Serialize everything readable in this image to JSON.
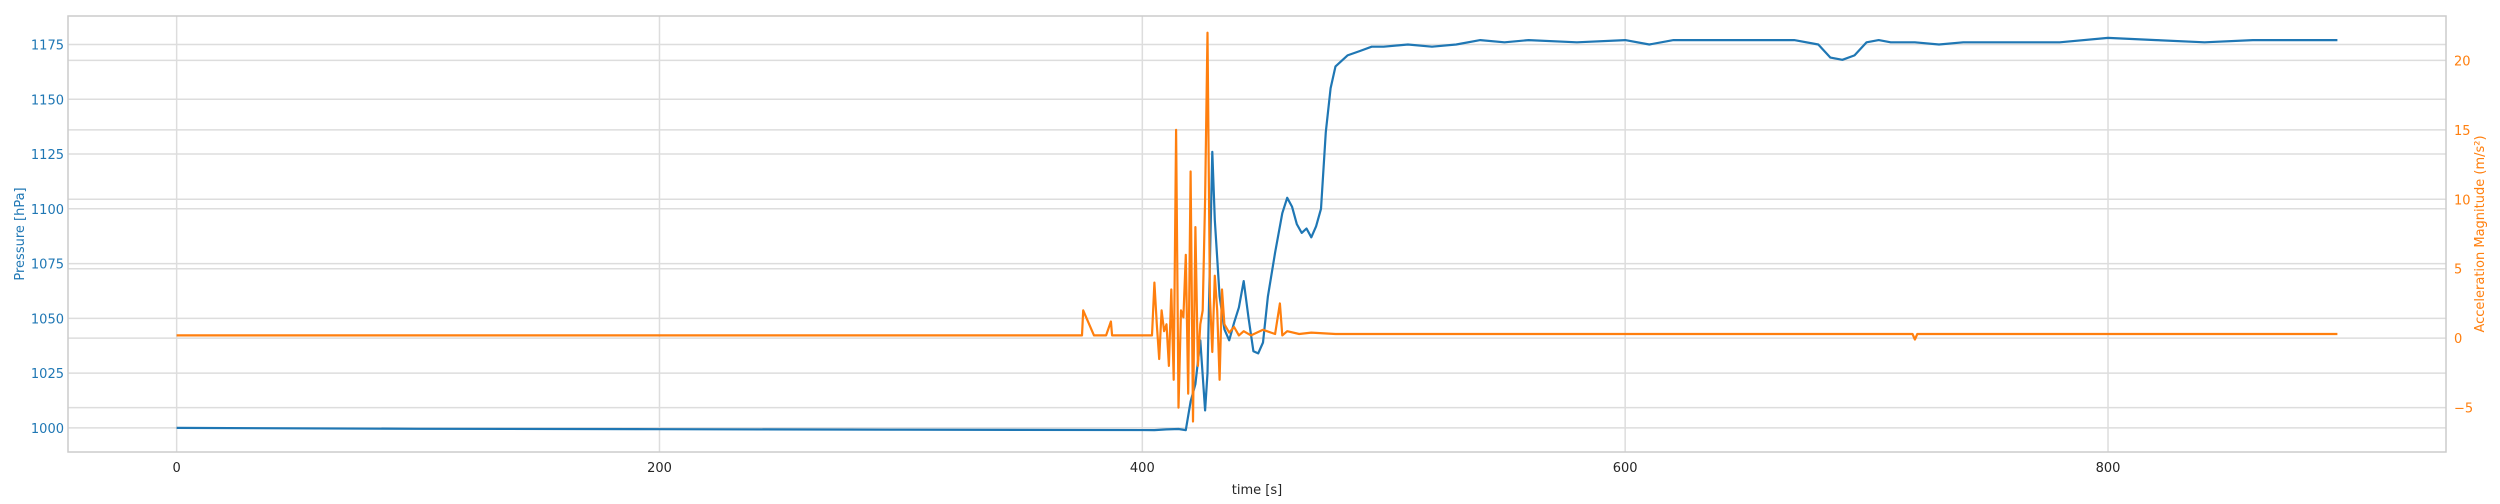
{
  "colors": {
    "pressure": "#1f77b4",
    "acceleration": "#ff7f0e",
    "frame": "#cccccc",
    "grid": "#dddddd",
    "text": "#262626"
  },
  "chart_data": {
    "type": "line",
    "grid": true,
    "legend": "none",
    "title": "",
    "xlabel": "time [s]",
    "ylabel_left": "Pressure [hPa]",
    "ylabel_right": "Acceleration Magnitude (m/s²)",
    "xlim": [
      -45,
      940
    ],
    "ylim_left": [
      989,
      1188
    ],
    "ylim_right": [
      -8.2,
      23.2
    ],
    "x_ticks": [
      0,
      200,
      400,
      600,
      800
    ],
    "y_ticks_left": [
      1000,
      1025,
      1050,
      1075,
      1100,
      1125,
      1150,
      1175
    ],
    "y_ticks_right": [
      -5,
      0,
      5,
      10,
      15,
      20
    ],
    "x_tick_labels": [
      "0",
      "200",
      "400",
      "600",
      "800"
    ],
    "y_tick_labels_left": [
      "1000",
      "1025",
      "1050",
      "1075",
      "1100",
      "1125",
      "1150",
      "1175"
    ],
    "y_tick_labels_right": [
      "−5",
      "0",
      "5",
      "10",
      "15",
      "20"
    ],
    "series": [
      {
        "axis": "left",
        "x": [
          0,
          100,
          200,
          300,
          405,
          410,
          415,
          418,
          420,
          422,
          424,
          426,
          427,
          429,
          430,
          432,
          434,
          436,
          438,
          440,
          442,
          444,
          446,
          448,
          450,
          452,
          455,
          458,
          460,
          462,
          464,
          466,
          468,
          470,
          472,
          474,
          476,
          478,
          480,
          485,
          490,
          495,
          500,
          510,
          520,
          530,
          540,
          550,
          560,
          580,
          600,
          610,
          620,
          630,
          650,
          670,
          680,
          685,
          690,
          695,
          700,
          705,
          710,
          720,
          730,
          740,
          760,
          780,
          800,
          820,
          840,
          860,
          880,
          895
        ],
        "y": [
          1000,
          999.6,
          999.4,
          999.2,
          999,
          999.3,
          999.5,
          999,
          1012,
          1020,
          1040,
          1008,
          1025,
          1126,
          1095,
          1060,
          1045,
          1040,
          1048,
          1055,
          1067,
          1050,
          1035,
          1034,
          1039,
          1060,
          1080,
          1098,
          1105,
          1101,
          1093,
          1089,
          1091,
          1087,
          1092,
          1100,
          1135,
          1155,
          1165,
          1170,
          1172,
          1174,
          1174,
          1175,
          1174,
          1175,
          1177,
          1176,
          1177,
          1176,
          1177,
          1175,
          1177,
          1177,
          1177,
          1177,
          1175,
          1169,
          1168,
          1170,
          1176,
          1177,
          1176,
          1176,
          1175,
          1176,
          1176,
          1176,
          1178,
          1177,
          1176,
          1177,
          1177,
          1177
        ]
      },
      {
        "axis": "right",
        "x": [
          0,
          100,
          200,
          300,
          370,
          375,
          375.5,
          380,
          385,
          387,
          387.5,
          395,
          404,
          405,
          406,
          407,
          408,
          409,
          410,
          411,
          412,
          413,
          414,
          415,
          416,
          417,
          418,
          419,
          420,
          421,
          422,
          423,
          424,
          425,
          426,
          427,
          428,
          429,
          430,
          431,
          432,
          433,
          434,
          436,
          438,
          440,
          442,
          445,
          450,
          455,
          457,
          458,
          460,
          465,
          470,
          480,
          500,
          600,
          700,
          719,
          720,
          721,
          800,
          895
        ],
        "y": [
          0.2,
          0.2,
          0.2,
          0.2,
          0.2,
          0.2,
          2.0,
          0.2,
          0.2,
          1.2,
          0.2,
          0.2,
          0.2,
          4.0,
          1.0,
          -1.5,
          2.0,
          0.5,
          1.0,
          -2.0,
          3.5,
          -3.0,
          15.0,
          -5.0,
          2.0,
          1.5,
          6.0,
          -4.0,
          12.0,
          -6.0,
          8.0,
          -2.0,
          1.0,
          2.0,
          10.0,
          22.0,
          3.0,
          -1.0,
          4.5,
          2.0,
          -3.0,
          3.5,
          1.0,
          0.4,
          0.8,
          0.2,
          0.5,
          0.2,
          0.6,
          0.3,
          2.5,
          0.2,
          0.5,
          0.3,
          0.4,
          0.3,
          0.3,
          0.3,
          0.3,
          0.3,
          -0.1,
          0.3,
          0.3,
          0.3
        ]
      }
    ]
  }
}
